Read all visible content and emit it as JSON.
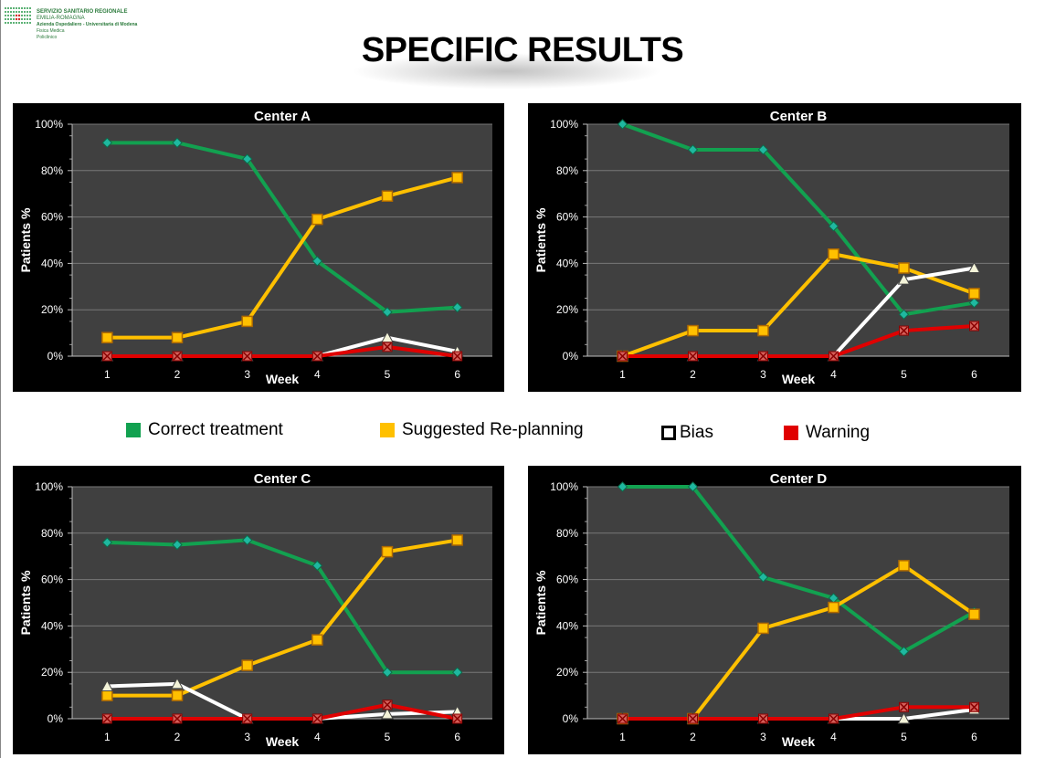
{
  "header": {
    "logo_lines": [
      "SERVIZIO SANITARIO REGIONALE",
      "EMILIA-ROMAGNA",
      "Azienda Ospedaliero - Universitaria di Modena",
      "Fisica Medica",
      "Policlinico"
    ],
    "title": "SPECIFIC RESULTS"
  },
  "colors": {
    "correct": "#12a150",
    "replanning": "#ffc000",
    "bias": "#ffffff",
    "warning": "#e00000",
    "plot_bg": "#404040",
    "panel_bg": "#000000"
  },
  "legend": [
    {
      "label": "Correct treatment",
      "color": "#12a150"
    },
    {
      "label": "Suggested Re-planning",
      "color": "#ffc000"
    },
    {
      "label": "Bias",
      "color": "#ffffff"
    },
    {
      "label": "Warning",
      "color": "#e00000"
    }
  ],
  "chart_data": [
    {
      "type": "line",
      "title": "Center A",
      "xlabel": "Week",
      "ylabel": "Patients %",
      "x": [
        1,
        2,
        3,
        4,
        5,
        6
      ],
      "ylim": [
        0,
        100
      ],
      "yticks": [
        "0%",
        "20%",
        "40%",
        "60%",
        "80%",
        "100%"
      ],
      "series": [
        {
          "name": "Correct treatment",
          "values": [
            92,
            92,
            85,
            41,
            19,
            21
          ]
        },
        {
          "name": "Suggested Re-planning",
          "values": [
            8,
            8,
            15,
            59,
            69,
            77
          ]
        },
        {
          "name": "Bias",
          "values": [
            0,
            0,
            0,
            0,
            8,
            2
          ]
        },
        {
          "name": "Warning",
          "values": [
            0,
            0,
            0,
            0,
            4,
            0
          ]
        }
      ]
    },
    {
      "type": "line",
      "title": "Center B",
      "xlabel": "Week",
      "ylabel": "Patients %",
      "x": [
        1,
        2,
        3,
        4,
        5,
        6
      ],
      "ylim": [
        0,
        100
      ],
      "yticks": [
        "0%",
        "20%",
        "40%",
        "60%",
        "80%",
        "100%"
      ],
      "series": [
        {
          "name": "Correct treatment",
          "values": [
            100,
            89,
            89,
            56,
            18,
            23
          ]
        },
        {
          "name": "Suggested Re-planning",
          "values": [
            0,
            11,
            11,
            44,
            38,
            27
          ]
        },
        {
          "name": "Bias",
          "values": [
            0,
            0,
            0,
            0,
            33,
            38
          ]
        },
        {
          "name": "Warning",
          "values": [
            0,
            0,
            0,
            0,
            11,
            13
          ]
        }
      ]
    },
    {
      "type": "line",
      "title": "Center C",
      "xlabel": "Week",
      "ylabel": "Patients %",
      "x": [
        1,
        2,
        3,
        4,
        5,
        6
      ],
      "ylim": [
        0,
        100
      ],
      "yticks": [
        "0%",
        "20%",
        "40%",
        "60%",
        "80%",
        "100%"
      ],
      "series": [
        {
          "name": "Correct treatment",
          "values": [
            76,
            75,
            77,
            66,
            20,
            20
          ]
        },
        {
          "name": "Suggested Re-planning",
          "values": [
            10,
            10,
            23,
            34,
            72,
            77
          ]
        },
        {
          "name": "Bias",
          "values": [
            14,
            15,
            0,
            0,
            2,
            3
          ]
        },
        {
          "name": "Warning",
          "values": [
            0,
            0,
            0,
            0,
            6,
            0
          ]
        }
      ]
    },
    {
      "type": "line",
      "title": "Center D",
      "xlabel": "Week",
      "ylabel": "Patients %",
      "x": [
        1,
        2,
        3,
        4,
        5,
        6
      ],
      "ylim": [
        0,
        100
      ],
      "yticks": [
        "0%",
        "20%",
        "40%",
        "60%",
        "80%",
        "100%"
      ],
      "series": [
        {
          "name": "Correct treatment",
          "values": [
            100,
            100,
            61,
            52,
            29,
            46
          ]
        },
        {
          "name": "Suggested Re-planning",
          "values": [
            0,
            0,
            39,
            48,
            66,
            45
          ]
        },
        {
          "name": "Bias",
          "values": [
            0,
            0,
            0,
            0,
            0,
            4
          ]
        },
        {
          "name": "Warning",
          "values": [
            0,
            0,
            0,
            0,
            5,
            5
          ]
        }
      ]
    }
  ]
}
